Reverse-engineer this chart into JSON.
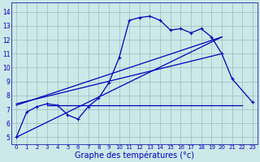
{
  "bg_color": "#cce8e8",
  "grid_color": "#99bbbb",
  "line_color": "#0000bb",
  "xlabel": "Graphe des températures (°c)",
  "xlabel_fontsize": 7,
  "ylim": [
    4.5,
    14.7
  ],
  "xlim": [
    -0.5,
    23.5
  ],
  "yticks": [
    5,
    6,
    7,
    8,
    9,
    10,
    11,
    12,
    13,
    14
  ],
  "xtick_labels": [
    "0",
    "1",
    "2",
    "3",
    "4",
    "5",
    "6",
    "7",
    "8",
    "9",
    "10",
    "11",
    "12",
    "13",
    "14",
    "15",
    "16",
    "17",
    "18",
    "19",
    "20",
    "21",
    "22",
    "23"
  ],
  "main_x": [
    0,
    1,
    2,
    3,
    4,
    5,
    6,
    7,
    8,
    9,
    10,
    11,
    12,
    13,
    14,
    15,
    16,
    17,
    18,
    19,
    20,
    21,
    23
  ],
  "main_y": [
    5.0,
    6.8,
    7.2,
    7.4,
    7.3,
    6.6,
    6.3,
    7.2,
    7.8,
    8.9,
    10.7,
    13.4,
    13.6,
    13.7,
    13.4,
    12.7,
    12.8,
    12.5,
    12.8,
    12.2,
    11.0,
    9.2,
    7.5
  ],
  "trend1_x": [
    0,
    20
  ],
  "trend1_y": [
    5.0,
    12.2
  ],
  "trend2_x": [
    0,
    20
  ],
  "trend2_y": [
    7.3,
    12.2
  ],
  "trend3_x": [
    0,
    20
  ],
  "trend3_y": [
    7.4,
    11.0
  ],
  "hline_x": [
    3,
    22
  ],
  "hline_y": [
    7.3,
    7.3
  ]
}
